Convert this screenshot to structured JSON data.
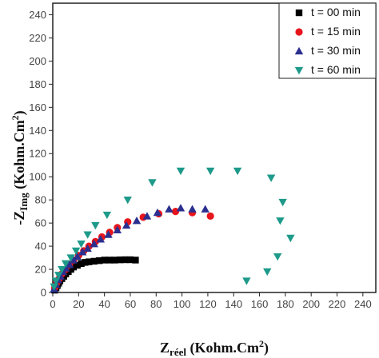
{
  "chart_data": {
    "type": "scatter",
    "xlabel": {
      "base": "Z",
      "sub": "réel",
      "unit": " (Kohm.Cm",
      "sup": "2",
      "close": ")"
    },
    "ylabel": {
      "prefix": "-Z",
      "sub": "Img",
      "unit": " (Kohm.Cm",
      "sup": "2",
      "close": ")"
    },
    "xlim": [
      0,
      250
    ],
    "ylim": [
      0,
      250
    ],
    "xticks": [
      0,
      20,
      40,
      60,
      80,
      100,
      120,
      140,
      160,
      180,
      200,
      220,
      240
    ],
    "yticks": [
      0,
      20,
      40,
      60,
      80,
      100,
      120,
      140,
      160,
      180,
      200,
      220,
      240
    ],
    "grid": false,
    "legend_position": "top-right",
    "series": [
      {
        "name": "t = 00 min",
        "marker": "square",
        "color": "#000000",
        "x": [
          1.5,
          2.5,
          3.5,
          4.5,
          5.5,
          7,
          8.5,
          10,
          12,
          14,
          16,
          19,
          22,
          25,
          28,
          32,
          36,
          40,
          44,
          48,
          52,
          56,
          60,
          64
        ],
        "y": [
          2,
          4,
          6,
          8,
          10,
          12,
          14,
          16,
          18,
          20,
          22,
          23.5,
          25,
          26,
          26.5,
          27,
          27.5,
          28,
          28,
          28,
          28.2,
          28.3,
          28.3,
          28
        ]
      },
      {
        "name": "t = 15 min",
        "marker": "circle",
        "color": "#e8141c",
        "x": [
          1.5,
          3,
          5,
          7,
          10,
          13,
          16,
          20,
          24,
          28,
          33,
          38,
          44,
          50,
          58,
          70,
          82,
          95,
          108,
          122
        ],
        "y": [
          4,
          8,
          12,
          16,
          20,
          24,
          28,
          32,
          36,
          40,
          44,
          48,
          52,
          56,
          61,
          65,
          68,
          70,
          69,
          66
        ]
      },
      {
        "name": "t = 30 min",
        "marker": "triangle-up",
        "color": "#2b2f8f",
        "x": [
          1,
          2.5,
          4,
          6,
          8,
          10,
          13,
          16,
          19,
          23,
          27,
          32,
          37,
          43,
          50,
          57,
          65,
          73,
          81,
          90,
          99,
          108,
          118
        ],
        "y": [
          3,
          7,
          11,
          14,
          18,
          21,
          24,
          28,
          31,
          35,
          38,
          42,
          46,
          50,
          54,
          58,
          62,
          66,
          69,
          72,
          73,
          72,
          72
        ]
      },
      {
        "name": "t = 60 min",
        "marker": "triangle-down",
        "color": "#1e9a8a",
        "x": [
          1,
          2.5,
          4.5,
          7,
          10,
          14,
          18,
          22,
          27,
          33,
          42,
          58,
          77,
          99,
          122,
          143,
          169,
          178,
          176,
          184,
          174,
          166,
          150
        ],
        "y": [
          5,
          10,
          15,
          20,
          25,
          30,
          36,
          42,
          50,
          58,
          67,
          80,
          95,
          105,
          105,
          105,
          99,
          78,
          62,
          47,
          31,
          18,
          10
        ]
      }
    ]
  }
}
